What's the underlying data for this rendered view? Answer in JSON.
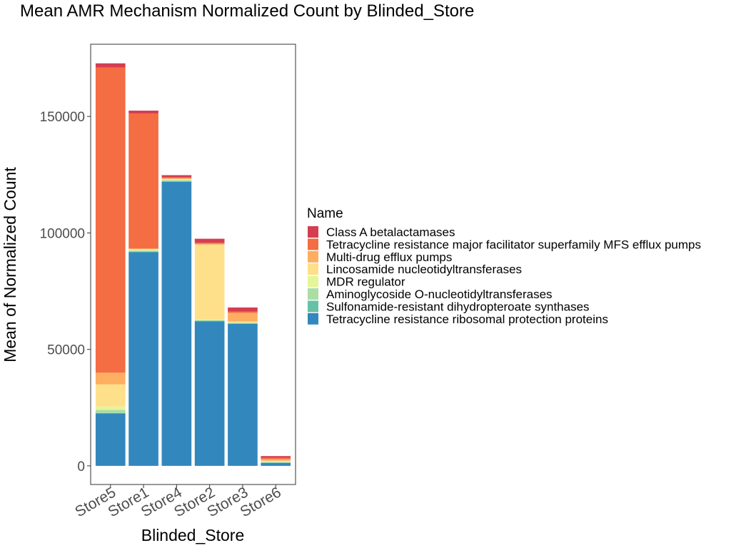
{
  "chart_data": {
    "type": "bar",
    "stacked": true,
    "title": "Mean AMR Mechanism Normalized Count by Blinded_Store",
    "xlabel": "Blinded_Store",
    "ylabel": "Mean of Normalized Count",
    "ylim": [
      -8000,
      181000
    ],
    "yticks": [
      0,
      50000,
      100000,
      150000
    ],
    "ytick_labels": [
      "0",
      "50000",
      "100000",
      "150000"
    ],
    "grid": false,
    "legend": {
      "title": "Name",
      "position": "right"
    },
    "categories": [
      "Store5",
      "Store1",
      "Store4",
      "Store2",
      "Store3",
      "Store6"
    ],
    "series": [
      {
        "name": "Tetracycline resistance ribosomal protection proteins",
        "color": "#3288bd",
        "values": [
          22500,
          91700,
          121900,
          62000,
          61000,
          1300
        ]
      },
      {
        "name": "Sulfonamide-resistant dihydropteroate synthases",
        "color": "#66c2a5",
        "values": [
          200,
          300,
          300,
          300,
          200,
          100
        ]
      },
      {
        "name": "Aminoglycoside O-nucleotidyltransferases",
        "color": "#abdda4",
        "values": [
          1300,
          400,
          500,
          200,
          200,
          300
        ]
      },
      {
        "name": "MDR regulator",
        "color": "#e6f598",
        "values": [
          1500,
          300,
          200,
          200,
          200,
          200
        ]
      },
      {
        "name": "Lincosamide nucleotidyltransferases",
        "color": "#fee08b",
        "values": [
          9500,
          300,
          300,
          32300,
          400,
          300
        ]
      },
      {
        "name": "Multi-drug efflux pumps",
        "color": "#fdae61",
        "values": [
          5000,
          300,
          300,
          300,
          3700,
          700
        ]
      },
      {
        "name": "Tetracycline resistance major facilitator superfamily MFS efflux pumps",
        "color": "#f46d43",
        "values": [
          131000,
          58000,
          300,
          500,
          500,
          500
        ]
      },
      {
        "name": "Class A betalactamases",
        "color": "#d53e4f",
        "values": [
          1800,
          1200,
          1000,
          1700,
          1800,
          800
        ]
      }
    ]
  }
}
